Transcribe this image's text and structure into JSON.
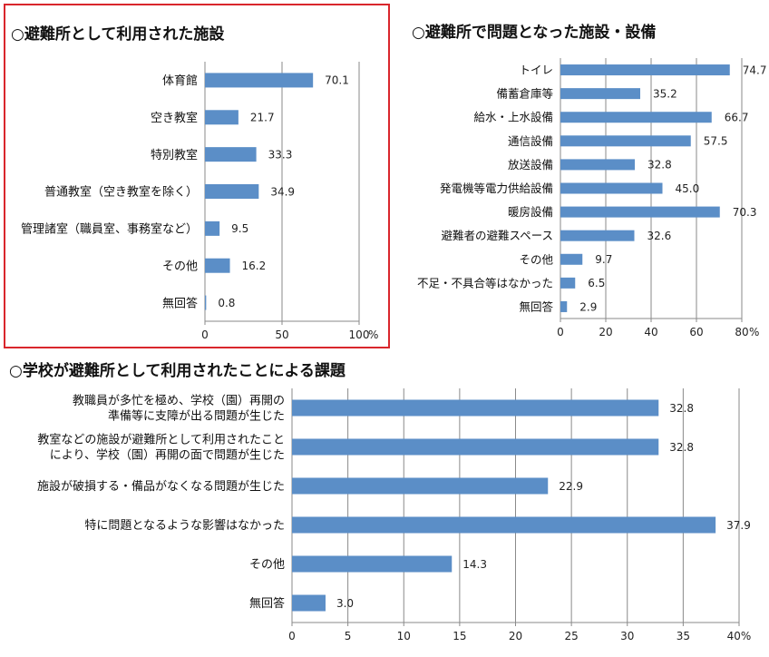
{
  "chart_data": [
    {
      "type": "bar",
      "orientation": "horizontal",
      "title": "○避難所として利用された施設",
      "categories": [
        "体育館",
        "空き教室",
        "特別教室",
        "普通教室（空き教室を除く）",
        "管理諸室（職員室、事務室など）",
        "その他",
        "無回答"
      ],
      "values": [
        70.1,
        21.7,
        33.3,
        34.9,
        9.5,
        16.2,
        0.8
      ],
      "value_labels": [
        "70.1",
        "21.7",
        "33.3",
        "34.9",
        "9.5",
        "16.2",
        "0.8"
      ],
      "xlim": [
        0,
        100
      ],
      "ticks": [
        0,
        50,
        100
      ],
      "tick_labels": [
        "0",
        "50",
        "100"
      ],
      "unit": "%",
      "grid": true,
      "bar_color": "#5b8ec7"
    },
    {
      "type": "bar",
      "orientation": "horizontal",
      "title": "○避難所で問題となった施設・設備",
      "categories": [
        "トイレ",
        "備蓄倉庫等",
        "給水・上水設備",
        "通信設備",
        "放送設備",
        "発電機等電力供給設備",
        "暖房設備",
        "避難者の避難スペース",
        "その他",
        "不足・不具合等はなかった",
        "無回答"
      ],
      "values": [
        74.7,
        35.2,
        66.7,
        57.5,
        32.8,
        45.0,
        70.3,
        32.6,
        9.7,
        6.5,
        2.9
      ],
      "value_labels": [
        "74.7",
        "35.2",
        "66.7",
        "57.5",
        "32.8",
        "45.0",
        "70.3",
        "32.6",
        "9.7",
        "6.5",
        "2.9"
      ],
      "xlim": [
        0,
        80
      ],
      "ticks": [
        0,
        20,
        40,
        60,
        80
      ],
      "tick_labels": [
        "0",
        "20",
        "40",
        "60",
        "80"
      ],
      "unit": "%",
      "grid": true,
      "bar_color": "#5b8ec7"
    },
    {
      "type": "bar",
      "orientation": "horizontal",
      "title": "○学校が避難所として利用されたことによる課題",
      "categories": [
        [
          "教職員が多忙を極め、学校（園）再開の",
          "準備等に支障が出る問題が生じた"
        ],
        [
          "教室などの施設が避難所として利用されたこと",
          "により、学校（園）再開の面で問題が生じた"
        ],
        [
          "施設が破損する・備品がなくなる問題が生じた"
        ],
        [
          "特に問題となるような影響はなかった"
        ],
        [
          "その他"
        ],
        [
          "無回答"
        ]
      ],
      "values": [
        32.8,
        32.8,
        22.9,
        37.9,
        14.3,
        3.0
      ],
      "value_labels": [
        "32.8",
        "32.8",
        "22.9",
        "37.9",
        "14.3",
        "3.0"
      ],
      "xlim": [
        0,
        40
      ],
      "ticks": [
        0,
        5,
        10,
        15,
        20,
        25,
        30,
        35,
        40
      ],
      "tick_labels": [
        "0",
        "5",
        "10",
        "15",
        "20",
        "25",
        "30",
        "35",
        "40%"
      ],
      "grid": true,
      "bar_color": "#5b8ec7"
    }
  ]
}
